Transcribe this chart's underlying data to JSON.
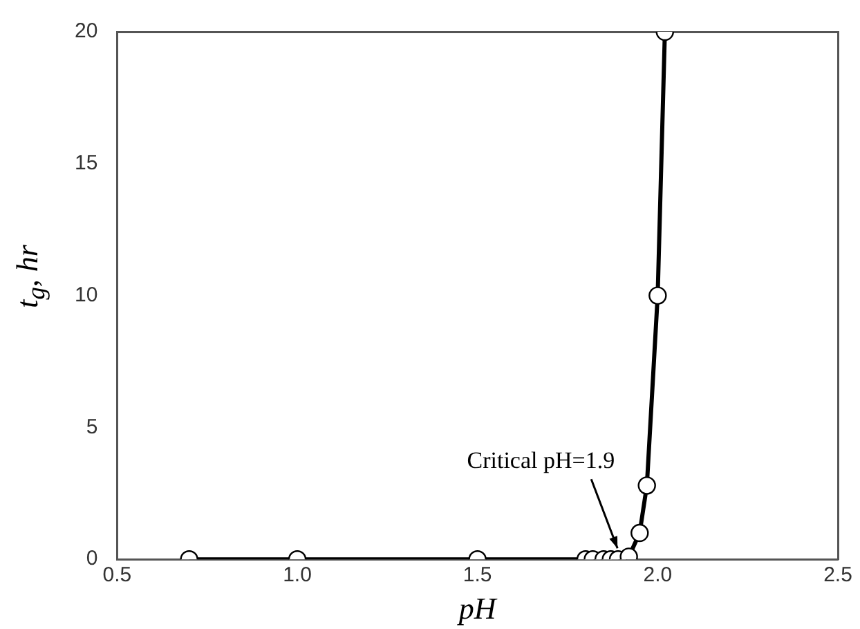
{
  "chart_data": {
    "type": "line",
    "xlabel": "pH",
    "ylabel": "t$_{g}$, hr",
    "x": [
      0.7,
      1.0,
      1.5,
      1.8,
      1.82,
      1.85,
      1.87,
      1.89,
      1.92,
      1.95,
      1.97,
      2.0,
      2.02
    ],
    "series": [
      {
        "color": "#000000",
        "values": [
          0,
          0,
          0,
          0,
          0,
          0,
          0,
          0,
          0.1,
          1.0,
          2.8,
          10,
          20
        ]
      }
    ],
    "xlim": [
      0.5,
      2.5
    ],
    "xticks": [
      {
        "value": 0.5,
        "label": "0.5"
      },
      {
        "value": 1.0,
        "label": "1.0"
      },
      {
        "value": 1.5,
        "label": "1.5"
      },
      {
        "value": 2.0,
        "label": "2.0"
      },
      {
        "value": 2.5,
        "label": "2.5"
      }
    ],
    "ylim": [
      0,
      20
    ],
    "yticks": [
      0,
      5,
      10,
      15,
      20
    ],
    "annotations": [
      {
        "text": "Critical pH=1.9",
        "x": 1.9,
        "y": 0
      }
    ],
    "marker": "circle",
    "line_style": "solid",
    "grid": false,
    "legend": false
  }
}
